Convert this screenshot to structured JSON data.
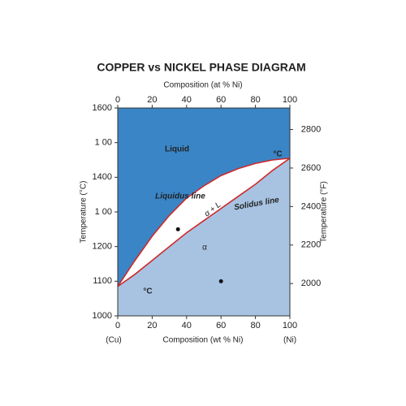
{
  "chart_data": {
    "type": "phase",
    "title": "COPPER vs NICKEL PHASE DIAGRAM",
    "x_label": "Composition (wt % Ni)",
    "x2_label": "Composition (at % Ni)",
    "y_label": "Temperature (°C)",
    "y2_label": "Temperature (°F)",
    "x_end_labels": [
      "(Cu)",
      "(Ni)"
    ],
    "x": [
      0,
      10,
      20,
      30,
      40,
      50,
      60,
      70,
      80,
      90,
      100
    ],
    "series": [
      {
        "name": "Liquidus line",
        "color": "#cc2a2a",
        "values": [
          1085,
          1160,
          1230,
          1290,
          1340,
          1375,
          1405,
          1425,
          1440,
          1450,
          1455
        ]
      },
      {
        "name": "Solidus line",
        "color": "#cc2a2a",
        "values": [
          1085,
          1120,
          1160,
          1200,
          1240,
          1275,
          1310,
          1345,
          1380,
          1420,
          1455
        ]
      }
    ],
    "liquid_color": "#3a85c6",
    "solid_color": "#a8c3e2",
    "points": [
      {
        "x": 35,
        "y": 1250
      },
      {
        "x": 60,
        "y": 1100
      }
    ],
    "labels": [
      "Liquid",
      "α + L",
      "α",
      "°C",
      "°C"
    ],
    "xlim": [
      0,
      100
    ],
    "xticks": [
      0,
      20,
      40,
      60,
      80,
      100
    ],
    "x2lim": [
      0,
      100
    ],
    "x2ticks": [
      0,
      20,
      40,
      60,
      80,
      100
    ],
    "ylim": [
      1000,
      1600
    ],
    "yticks": [
      1000,
      1100,
      1200,
      {
        "value": 1300,
        "label": "1 00"
      },
      1400,
      {
        "value": 1500,
        "label": "1 00"
      },
      1600
    ],
    "y2lim": [
      1832,
      2912
    ],
    "y2ticks": [
      2000,
      2200,
      2400,
      2600,
      2800
    ]
  }
}
